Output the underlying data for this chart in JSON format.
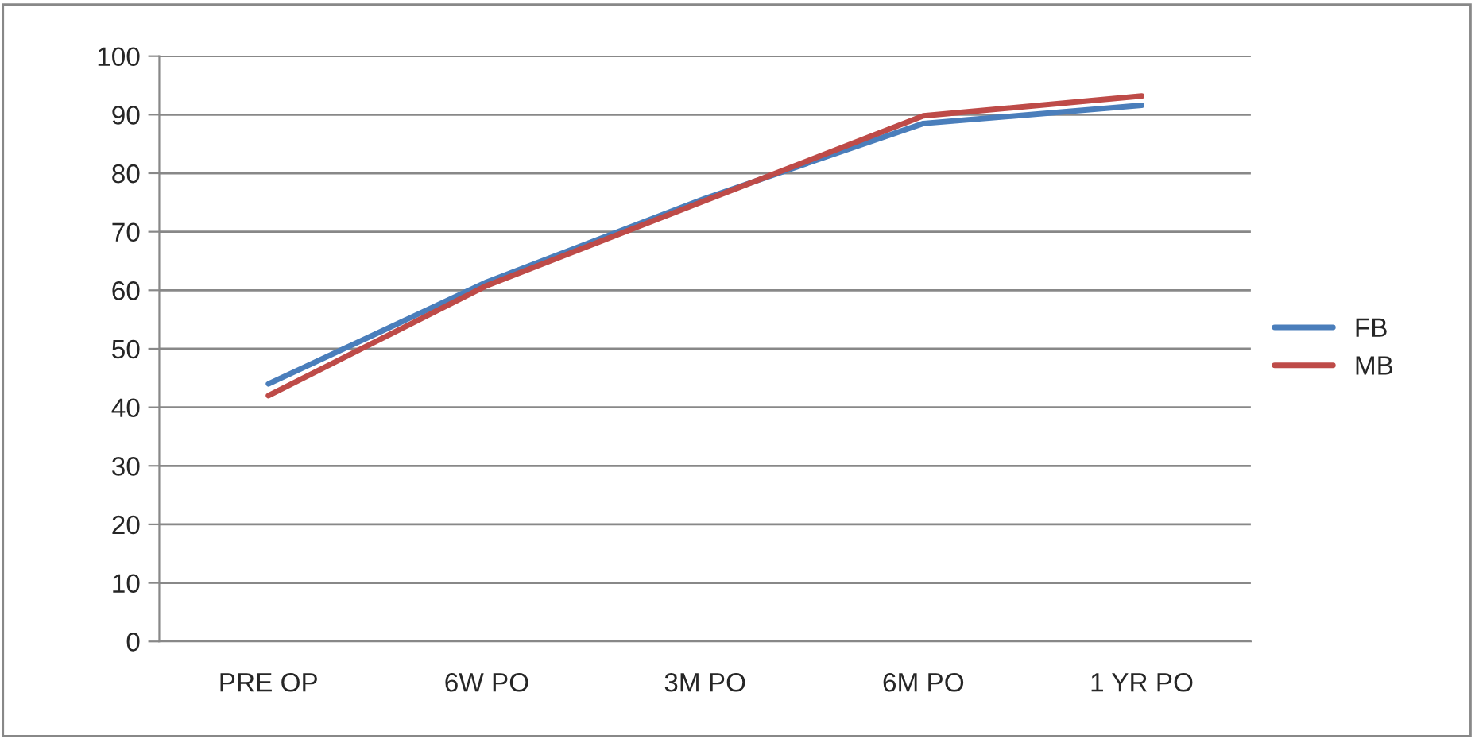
{
  "chart_data": {
    "type": "line",
    "categories": [
      "PRE OP",
      "6W PO",
      "3M PO",
      "6M PO",
      "1 YR PO"
    ],
    "series": [
      {
        "name": "FB",
        "color": "#4a7ebb",
        "values": [
          44,
          61.4,
          75.7,
          88.5,
          91.6
        ]
      },
      {
        "name": "MB",
        "color": "#be4b48",
        "values": [
          42,
          60.8,
          75.3,
          89.8,
          93.2
        ]
      }
    ],
    "ylim": [
      0,
      100
    ],
    "yticks": [
      0,
      10,
      20,
      30,
      40,
      50,
      60,
      70,
      80,
      90,
      100
    ],
    "grid": "y",
    "legend": "right",
    "marker": "none",
    "line_style": "solid"
  }
}
